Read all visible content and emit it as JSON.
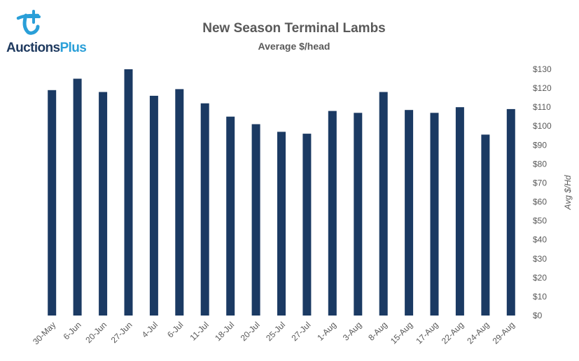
{
  "logo": {
    "name": "AuctionsPlus",
    "wordmark_main": "Auctions",
    "wordmark_accent": "Plus",
    "icon": "auctionsplus-logo-icon"
  },
  "chart_data": {
    "type": "bar",
    "title": "New Season Terminal Lambs",
    "subtitle": "Average $/head",
    "xlabel": "",
    "ylabel": "Avg $/Hd",
    "y_axis_position": "right",
    "ylim": [
      0,
      130
    ],
    "yticks": [
      "$130",
      "$120",
      "$110",
      "$100",
      "$90",
      "$80",
      "$70",
      "$60",
      "$50",
      "$40",
      "$30",
      "$20",
      "$10",
      "$0"
    ],
    "categories": [
      "30-May",
      "6-Jun",
      "20-Jun",
      "27-Jun",
      "4-Jul",
      "6-Jul",
      "11-Jul",
      "18-Jul",
      "20-Jul",
      "25-Jul",
      "27-Jul",
      "1-Aug",
      "3-Aug",
      "8-Aug",
      "15-Aug",
      "17-Aug",
      "22-Aug",
      "24-Aug",
      "29-Aug"
    ],
    "values": [
      119,
      125,
      118,
      130,
      116,
      119.5,
      112,
      105,
      101,
      97,
      96,
      108,
      107,
      118,
      108.5,
      107,
      110,
      95.5,
      109
    ],
    "bar_color": "#1b3a63",
    "grid": false,
    "legend": "none"
  }
}
